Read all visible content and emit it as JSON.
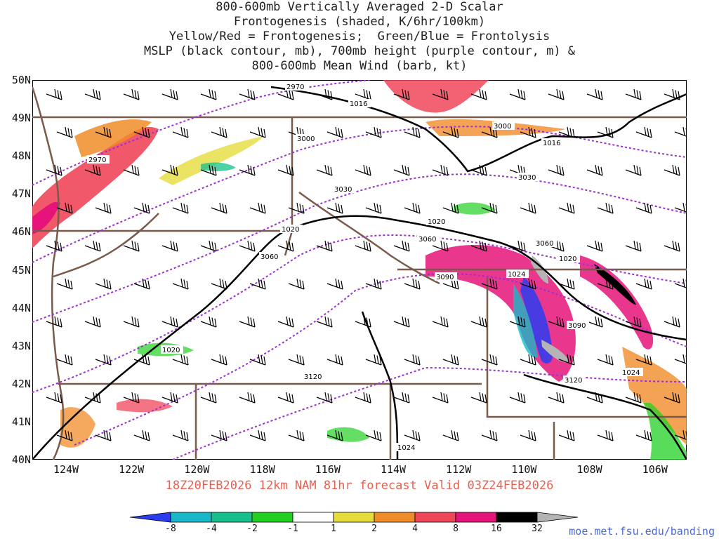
{
  "title_lines": [
    "800-600mb Vertically Averaged 2-D Scalar",
    "Frontogenesis (shaded, K/6hr/100km)",
    "Yellow/Red = Frontogenesis;  Green/Blue = Frontolysis",
    "MSLP (black contour, mb), 700mb height (purple contour, m) &",
    "800-600mb Mean Wind (barb, kt)"
  ],
  "lat_labels": [
    "50N",
    "49N",
    "48N",
    "47N",
    "46N",
    "45N",
    "44N",
    "43N",
    "42N",
    "41N",
    "40N"
  ],
  "lon_labels": [
    "124W",
    "122W",
    "120W",
    "118W",
    "116W",
    "114W",
    "112W",
    "110W",
    "108W",
    "106W"
  ],
  "footer": "18Z20FEB2026 12km NAM 81hr forecast Valid 03Z24FEB2026",
  "colorbar_labels": [
    "-8",
    "-4",
    "-2",
    "-1",
    "1",
    "2",
    "4",
    "8",
    "16",
    "32"
  ],
  "colorbar_colors": [
    "#2a3cf0",
    "#19b8c8",
    "#16c08a",
    "#22d022",
    "#ffffff",
    "#e6dc3c",
    "#f08c28",
    "#f0465a",
    "#e6147a",
    "#000000",
    "#b4b4b4"
  ],
  "url": "moe.met.fsu.edu/banding",
  "contour_labels": {
    "height": [
      "2970",
      "2970",
      "3000",
      "3000",
      "3030",
      "3030",
      "3060",
      "3060",
      "3060",
      "3090",
      "3090",
      "3120",
      "3120"
    ],
    "pressure": [
      "1016",
      "1016",
      "1020",
      "1020",
      "1020",
      "1020",
      "1024",
      "1024",
      "1024"
    ]
  },
  "colors": {
    "pressure": "#000000",
    "height": "#9b30d0",
    "borders": "#7a5a4a"
  }
}
